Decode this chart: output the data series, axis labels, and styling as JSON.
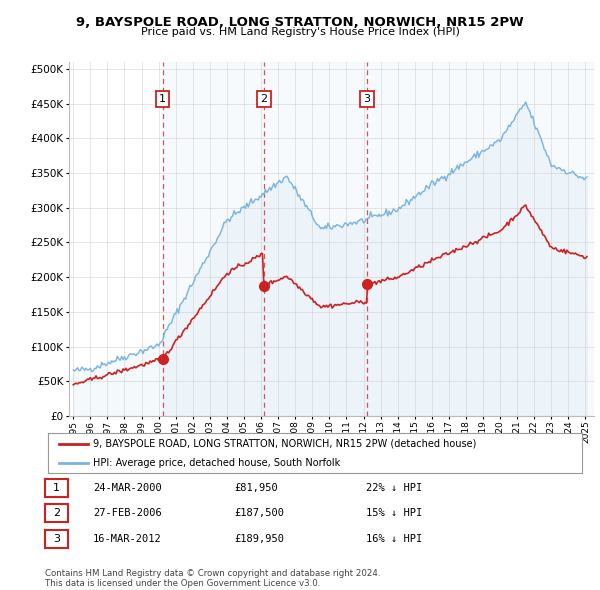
{
  "title": "9, BAYSPOLE ROAD, LONG STRATTON, NORWICH, NR15 2PW",
  "subtitle": "Price paid vs. HM Land Registry's House Price Index (HPI)",
  "yticks": [
    0,
    50000,
    100000,
    150000,
    200000,
    250000,
    300000,
    350000,
    400000,
    450000,
    500000
  ],
  "ytick_labels": [
    "£0",
    "£50K",
    "£100K",
    "£150K",
    "£200K",
    "£250K",
    "£300K",
    "£350K",
    "£400K",
    "£450K",
    "£500K"
  ],
  "xmin": 1994.75,
  "xmax": 2025.5,
  "ymin": 0,
  "ymax": 510000,
  "sale_dates": [
    2000.23,
    2006.16,
    2012.21
  ],
  "sale_prices": [
    81950,
    187500,
    189950
  ],
  "sale_labels": [
    "1",
    "2",
    "3"
  ],
  "hpi_color": "#7ab3e0",
  "hpi_fill": "#ddeeff",
  "price_color": "#cc2222",
  "dashed_color": "#cc4444",
  "legend_line1": "9, BAYSPOLE ROAD, LONG STRATTON, NORWICH, NR15 2PW (detached house)",
  "legend_line2": "HPI: Average price, detached house, South Norfolk",
  "table_rows": [
    {
      "num": "1",
      "date": "24-MAR-2000",
      "price": "£81,950",
      "pct": "22% ↓ HPI"
    },
    {
      "num": "2",
      "date": "27-FEB-2006",
      "price": "£187,500",
      "pct": "15% ↓ HPI"
    },
    {
      "num": "3",
      "date": "16-MAR-2012",
      "price": "£189,950",
      "pct": "16% ↓ HPI"
    }
  ],
  "footer": "Contains HM Land Registry data © Crown copyright and database right 2024.\nThis data is licensed under the Open Government Licence v3.0.",
  "bg_color": "#ffffff",
  "grid_color": "#cccccc"
}
